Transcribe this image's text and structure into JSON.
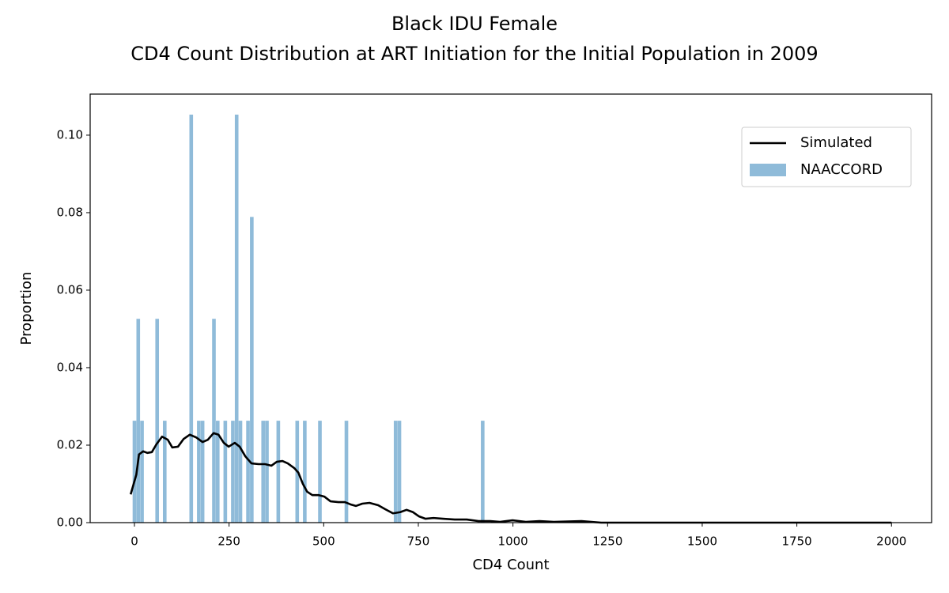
{
  "chart_data": {
    "type": "bar-line",
    "title": "Black IDU Female",
    "subtitle": "CD4 Count Distribution at ART Initiation for the Initial Population in 2009",
    "xlabel": "CD4 Count",
    "ylabel": "Proportion",
    "xlim": [
      -117,
      2106
    ],
    "ylim": [
      0,
      0.1106
    ],
    "xticks": [
      0,
      250,
      500,
      750,
      1000,
      1250,
      1500,
      1750,
      2000
    ],
    "yticks": [
      {
        "value": 0,
        "label": "0.00"
      },
      0.02,
      0.04,
      0.06,
      0.08,
      {
        "value": 0.1,
        "label": "0.10"
      }
    ],
    "legend": "upper right",
    "series": [
      {
        "name": "Simulated",
        "type": "line",
        "color": "#000000",
        "x": [
          -10,
          5,
          12,
          23,
          34,
          46,
          58,
          73,
          88,
          100,
          115,
          130,
          146,
          163,
          180,
          194,
          209,
          222,
          236,
          249,
          265,
          278,
          293,
          309,
          328,
          345,
          362,
          376,
          391,
          405,
          422,
          433,
          445,
          456,
          470,
          487,
          502,
          518,
          539,
          556,
          571,
          585,
          602,
          621,
          644,
          662,
          683,
          702,
          719,
          736,
          752,
          769,
          790,
          815,
          846,
          878,
          909,
          940,
          966,
          999,
          1034,
          1070,
          1108,
          1181,
          1233,
          2000
        ],
        "values": [
          0.0073,
          0.0124,
          0.0176,
          0.0184,
          0.018,
          0.0182,
          0.0202,
          0.0222,
          0.0214,
          0.0194,
          0.0196,
          0.0216,
          0.0227,
          0.022,
          0.0208,
          0.0214,
          0.0231,
          0.0227,
          0.0206,
          0.0196,
          0.0206,
          0.0196,
          0.0171,
          0.0153,
          0.0151,
          0.0151,
          0.0147,
          0.0157,
          0.0159,
          0.0153,
          0.0141,
          0.0129,
          0.01,
          0.008,
          0.0071,
          0.0071,
          0.0067,
          0.0055,
          0.0053,
          0.0053,
          0.0047,
          0.0043,
          0.0049,
          0.0051,
          0.0045,
          0.0035,
          0.0024,
          0.0027,
          0.0033,
          0.0027,
          0.0016,
          0.001,
          0.0012,
          0.001,
          0.0008,
          0.0008,
          0.0004,
          0.0004,
          0.0002,
          0.0006,
          0.0002,
          0.0004,
          0.0002,
          0.0004,
          0,
          0
        ]
      },
      {
        "name": "NAACCORD",
        "type": "bar",
        "color": "#8fbbd9",
        "x": [
          0,
          10,
          20,
          60,
          80,
          150,
          170,
          180,
          210,
          220,
          240,
          260,
          270,
          280,
          300,
          310,
          340,
          350,
          380,
          430,
          450,
          490,
          560,
          690,
          700,
          920
        ],
        "values": [
          0.0263,
          0.0526,
          0.0263,
          0.0526,
          0.0263,
          0.1053,
          0.0263,
          0.0263,
          0.0526,
          0.0263,
          0.0263,
          0.0263,
          0.1053,
          0.0263,
          0.0263,
          0.0789,
          0.0263,
          0.0263,
          0.0263,
          0.0263,
          0.0263,
          0.0263,
          0.0263,
          0.0263,
          0.0263,
          0.0263
        ]
      }
    ]
  }
}
